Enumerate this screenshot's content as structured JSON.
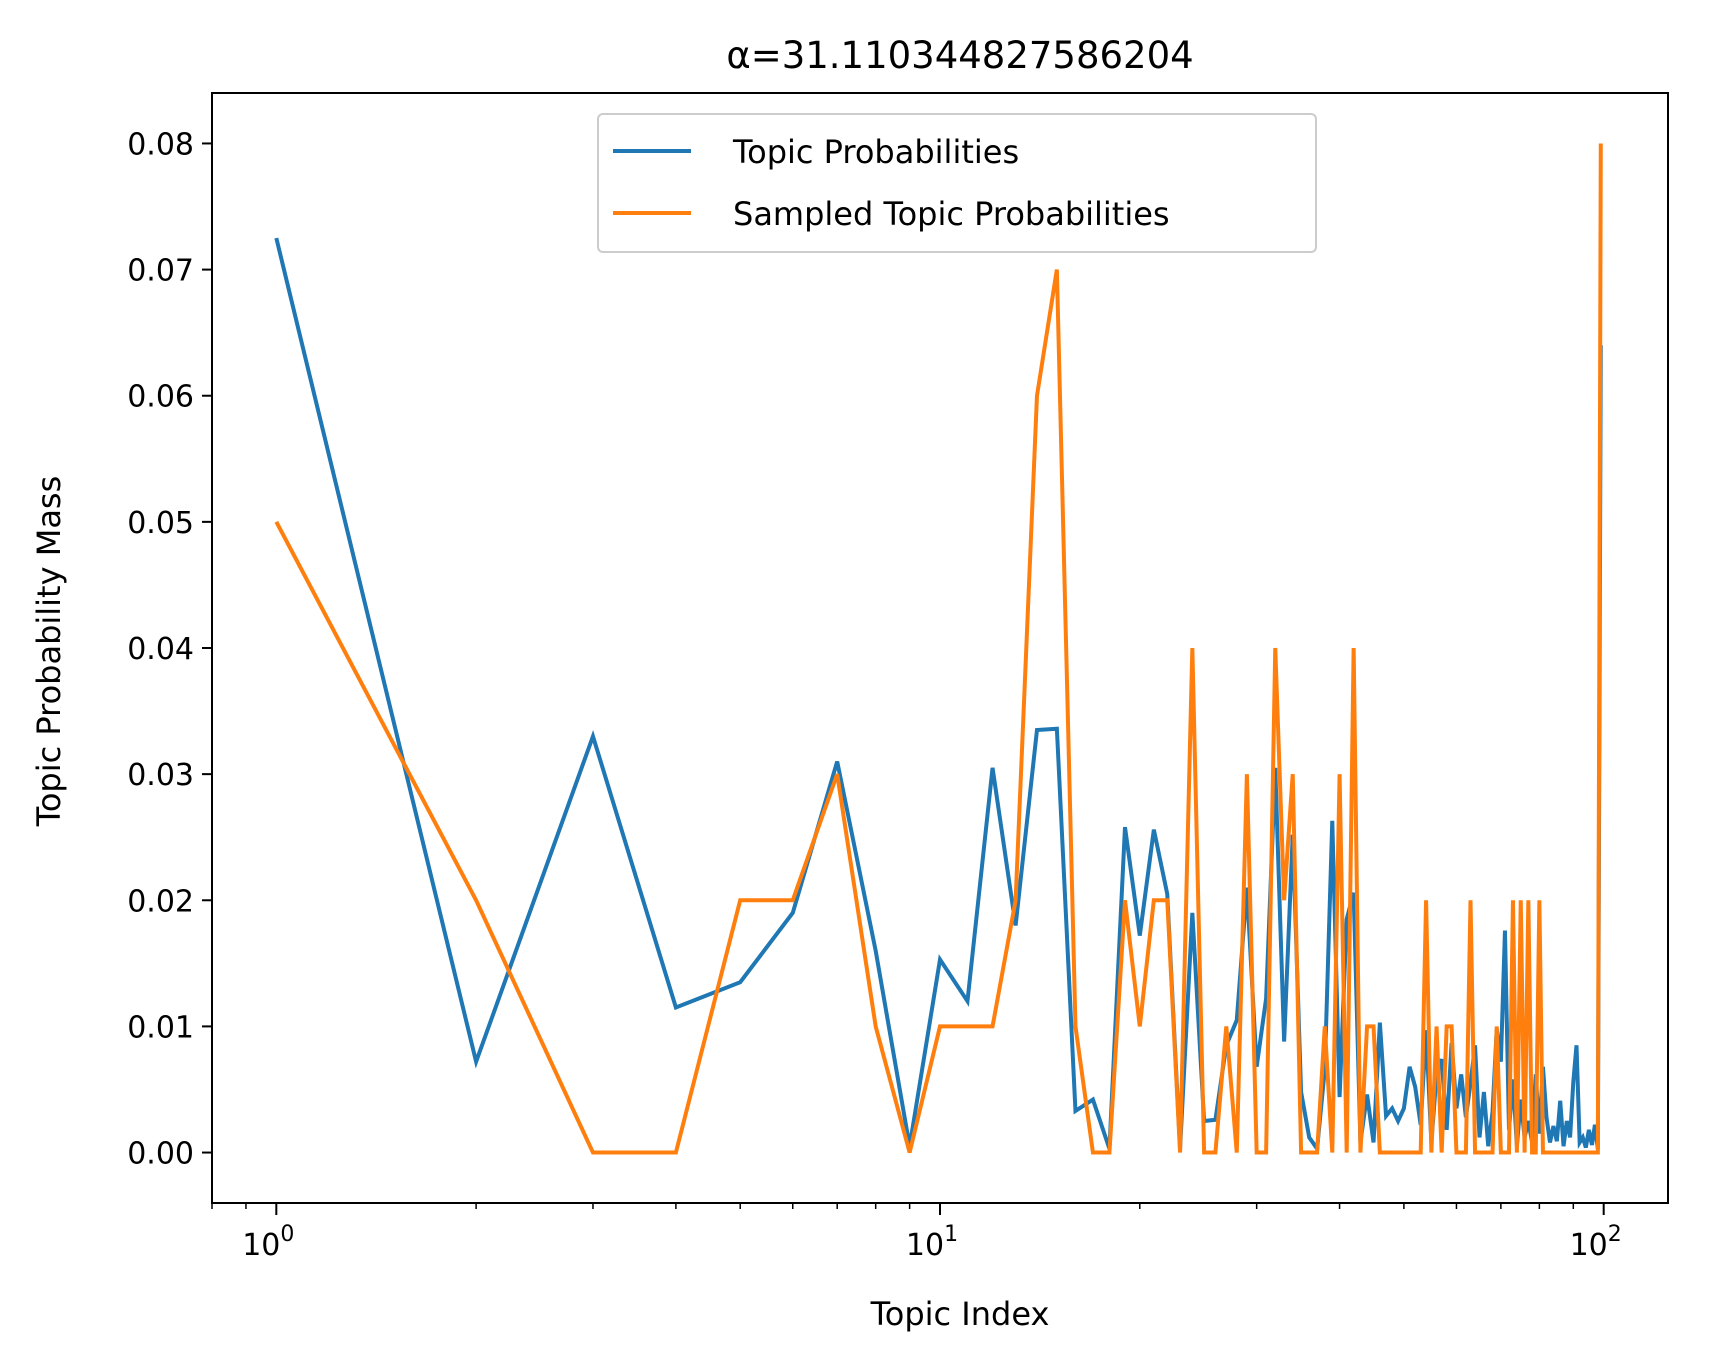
{
  "chart_data": {
    "type": "line",
    "title": "α=31.110344827586204",
    "xlabel": "Topic Index",
    "ylabel": "Topic Probability Mass",
    "xscale": "log",
    "xlim": [
      0.8,
      125
    ],
    "ylim": [
      -0.004,
      0.084
    ],
    "grid": false,
    "legend_position": "top-center",
    "x_ticks": [
      {
        "value": 1,
        "base": "10",
        "exp": "0"
      },
      {
        "value": 10,
        "base": "10",
        "exp": "1"
      },
      {
        "value": 100,
        "base": "10",
        "exp": "2"
      }
    ],
    "y_ticks": [
      "0.00",
      "0.01",
      "0.02",
      "0.03",
      "0.04",
      "0.05",
      "0.06",
      "0.07",
      "0.08"
    ],
    "series": [
      {
        "name": "Topic Probabilities",
        "color": "#1f77b4",
        "x": [
          0,
          1,
          2,
          3,
          4,
          5,
          6,
          7,
          8,
          9,
          10,
          11,
          12,
          13,
          14,
          15,
          16,
          17,
          18,
          19,
          20,
          21,
          22,
          23,
          24,
          25,
          26,
          27,
          28,
          29,
          30,
          31,
          32,
          33,
          34,
          35,
          36,
          37,
          38,
          39,
          40,
          41,
          42,
          43,
          44,
          45,
          46,
          47,
          48,
          49,
          50,
          51,
          52,
          53,
          54,
          55,
          56,
          57,
          58,
          59,
          60,
          61,
          62,
          63,
          64,
          65,
          66,
          67,
          68,
          69,
          70,
          71,
          72,
          73,
          74,
          75,
          76,
          77,
          78,
          79,
          80,
          81,
          82,
          83,
          84,
          85,
          86,
          87,
          88,
          89,
          90,
          91,
          92,
          93,
          94,
          95,
          96,
          97,
          98,
          99
        ],
        "y": [
          0.0725,
          0.0725,
          0.0072,
          0.033,
          0.0115,
          0.0135,
          0.019,
          0.031,
          0.016,
          0.0005,
          0.0153,
          0.012,
          0.0305,
          0.018,
          0.0335,
          0.0336,
          0.0033,
          0.0042,
          0.0003,
          0.0258,
          0.0172,
          0.0256,
          0.0205,
          0.0003,
          0.019,
          0.0025,
          0.0026,
          0.0085,
          0.0105,
          0.021,
          0.0068,
          0.0122,
          0.0305,
          0.0088,
          0.0252,
          0.0048,
          0.0012,
          0.0003,
          0.0066,
          0.0263,
          0.0044,
          0.0185,
          0.0206,
          0.0008,
          0.0046,
          0.0008,
          0.0103,
          0.0029,
          0.0035,
          0.0025,
          0.0035,
          0.0068,
          0.0052,
          0.0022,
          0.0097,
          0.0008,
          0.0062,
          0.0074,
          0.0018,
          0.0087,
          0.0035,
          0.0062,
          0.0028,
          0.0055,
          0.0085,
          0.0012,
          0.0048,
          0.0005,
          0.0032,
          0.0098,
          0.0072,
          0.0176,
          0.0018,
          0.0058,
          0.0005,
          0.0042,
          0.0012,
          0.0025,
          0.0008,
          0.0062,
          0.0015,
          0.0068,
          0.0028,
          0.0008,
          0.0021,
          0.0009,
          0.0041,
          0.0005,
          0.0025,
          0.0012,
          0.0056,
          0.0085,
          0.0008,
          0.0012,
          0.0004,
          0.0018,
          0.0006,
          0.0022,
          0.0003,
          0.064
        ]
      },
      {
        "name": "Sampled Topic Probabilities",
        "color": "#ff7f0e",
        "x": [
          0,
          1,
          2,
          3,
          4,
          5,
          6,
          7,
          8,
          9,
          10,
          11,
          12,
          13,
          14,
          15,
          16,
          17,
          18,
          19,
          20,
          21,
          22,
          23,
          24,
          25,
          26,
          27,
          28,
          29,
          30,
          31,
          32,
          33,
          34,
          35,
          36,
          37,
          38,
          39,
          40,
          41,
          42,
          43,
          44,
          45,
          46,
          47,
          48,
          49,
          50,
          51,
          52,
          53,
          54,
          55,
          56,
          57,
          58,
          59,
          60,
          61,
          62,
          63,
          64,
          65,
          66,
          67,
          68,
          69,
          70,
          71,
          72,
          73,
          74,
          75,
          76,
          77,
          78,
          79,
          80,
          81,
          82,
          83,
          84,
          85,
          86,
          87,
          88,
          89,
          90,
          91,
          92,
          93,
          94,
          95,
          96,
          97,
          98,
          99
        ],
        "y": [
          0.05,
          0.05,
          0.02,
          0.0,
          0.0,
          0.02,
          0.02,
          0.03,
          0.01,
          0.0,
          0.01,
          0.01,
          0.01,
          0.02,
          0.06,
          0.07,
          0.01,
          0.0,
          0.0,
          0.02,
          0.01,
          0.02,
          0.02,
          0.0,
          0.04,
          0.0,
          0.0,
          0.01,
          0.0,
          0.03,
          0.0,
          0.0,
          0.04,
          0.02,
          0.03,
          0.0,
          0.0,
          0.0,
          0.01,
          0.0,
          0.03,
          0.0,
          0.04,
          0.0,
          0.01,
          0.01,
          0.0,
          0.0,
          0.0,
          0.0,
          0.0,
          0.0,
          0.0,
          0.0,
          0.02,
          0.0,
          0.01,
          0.0,
          0.01,
          0.01,
          0.0,
          0.0,
          0.0,
          0.02,
          0.0,
          0.0,
          0.0,
          0.0,
          0.0,
          0.01,
          0.0,
          0.0,
          0.0,
          0.02,
          0.0,
          0.02,
          0.0,
          0.02,
          0.0,
          0.0,
          0.02,
          0.0,
          0.0,
          0.0,
          0.0,
          0.0,
          0.0,
          0.0,
          0.0,
          0.0,
          0.0,
          0.0,
          0.0,
          0.0,
          0.0,
          0.0,
          0.0,
          0.0,
          0.0,
          0.08
        ]
      }
    ]
  }
}
